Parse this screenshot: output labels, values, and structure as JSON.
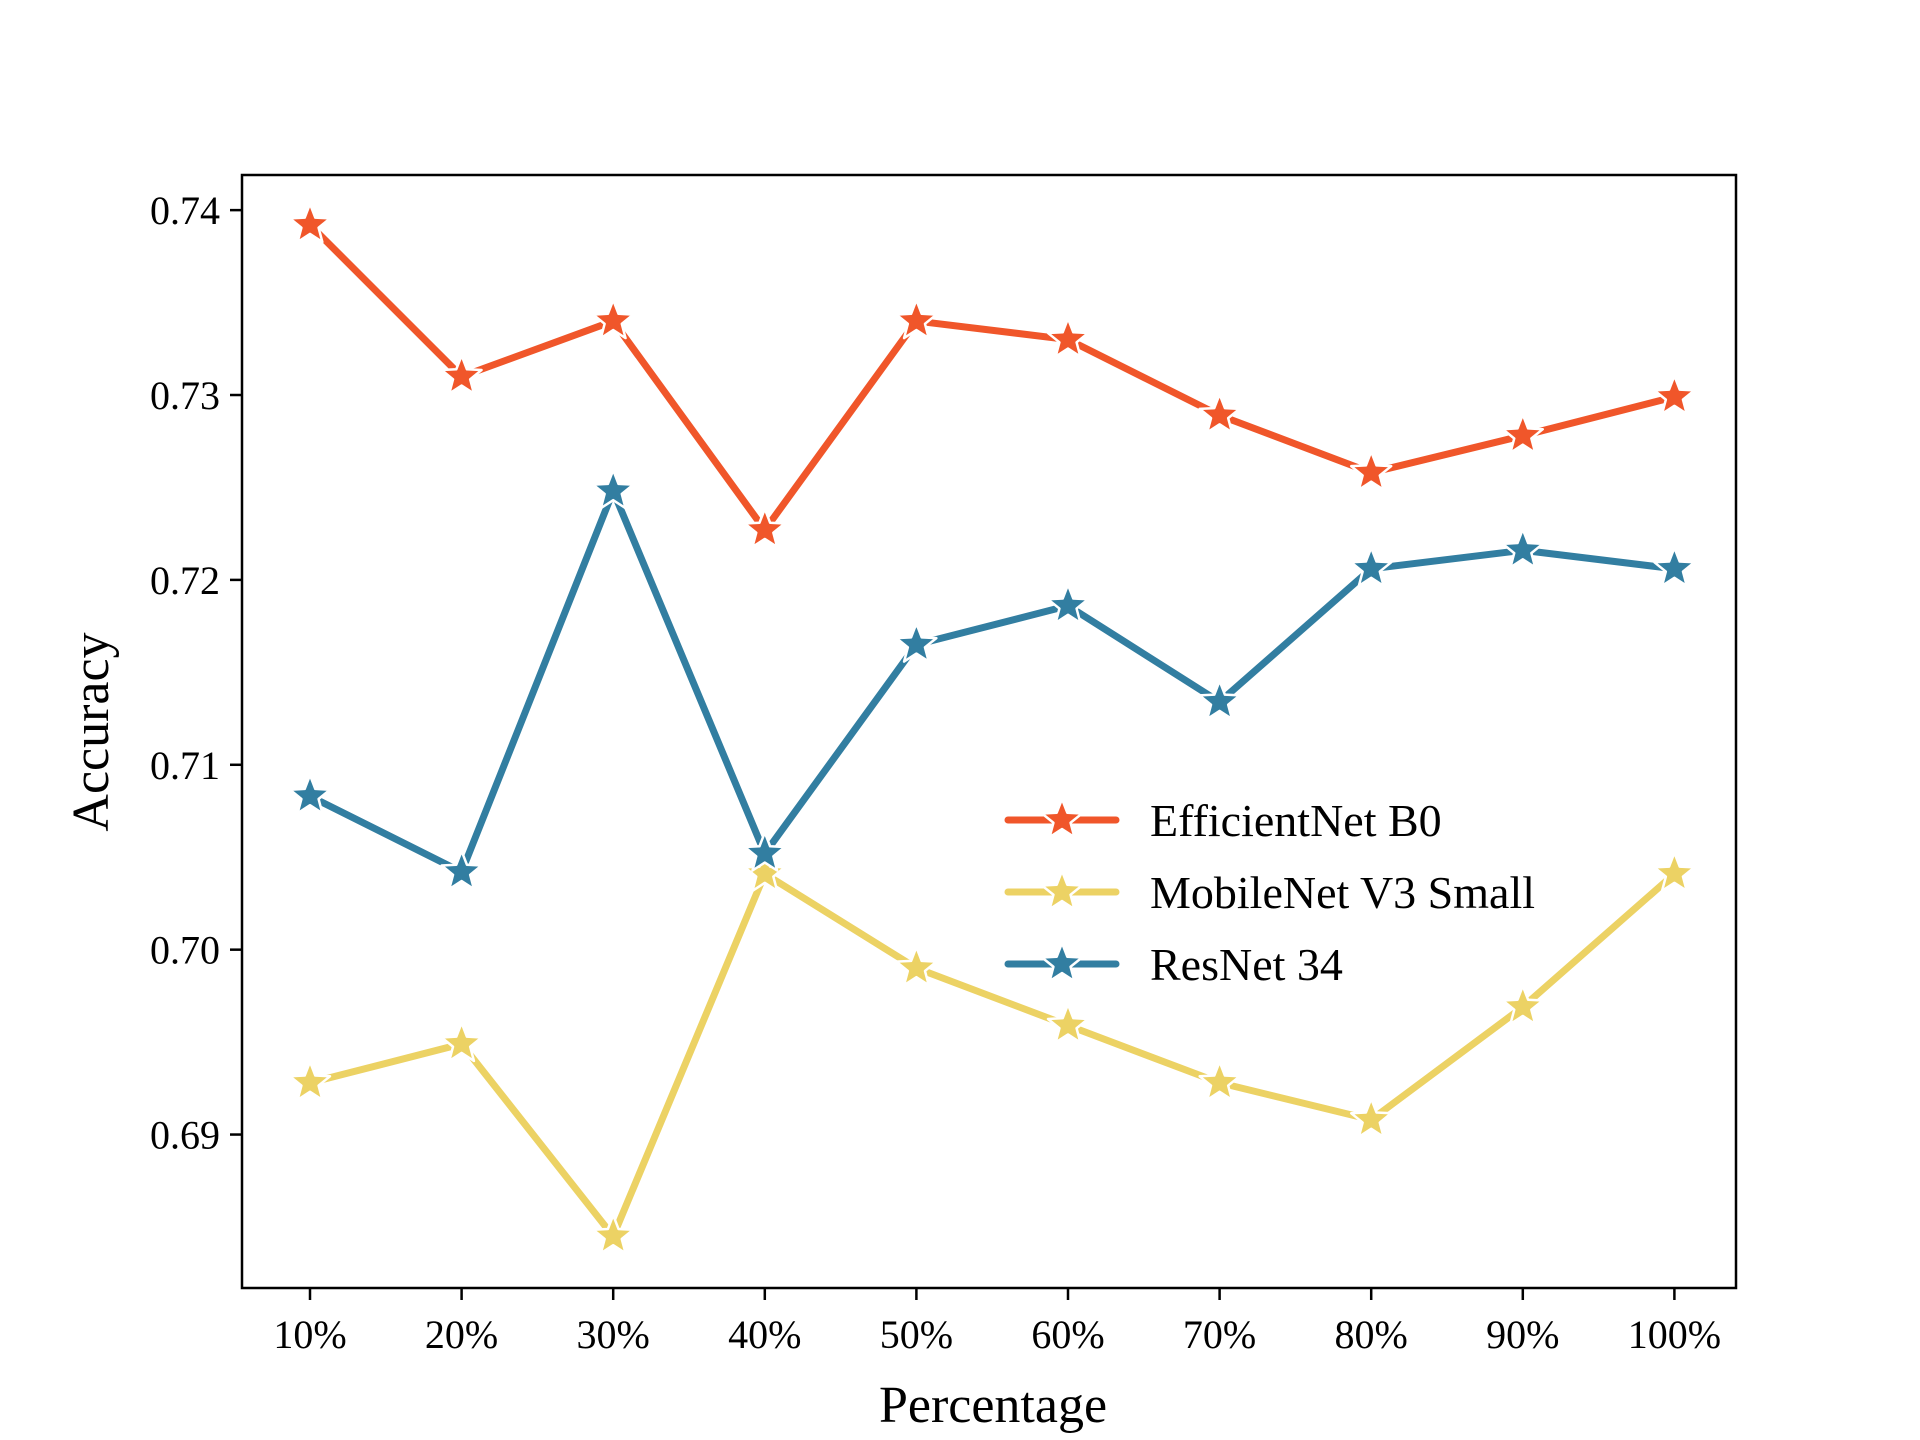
{
  "chart_data": {
    "type": "line",
    "xlabel": "Percentage",
    "ylabel": "Accuracy",
    "categories": [
      "10%",
      "20%",
      "30%",
      "40%",
      "50%",
      "60%",
      "70%",
      "80%",
      "90%",
      "100%"
    ],
    "yticks": [
      0.69,
      0.7,
      0.71,
      0.72,
      0.73,
      0.74
    ],
    "ytick_labels": [
      "0.69",
      "0.70",
      "0.71",
      "0.72",
      "0.73",
      "0.74"
    ],
    "ylim": [
      0.6817,
      0.7419
    ],
    "grid": false,
    "legend_position": "center-right",
    "marker": "star",
    "series": [
      {
        "name": "EfficientNet B0",
        "color": "#f0562a",
        "values": [
          0.7392,
          0.731,
          0.734,
          0.7227,
          0.734,
          0.733,
          0.7289,
          0.7258,
          0.7278,
          0.7299
        ]
      },
      {
        "name": "MobileNet V3 Small",
        "color": "#ecd264",
        "values": [
          0.6928,
          0.6949,
          0.6845,
          0.7041,
          0.699,
          0.6959,
          0.6928,
          0.6908,
          0.6969,
          0.7041
        ]
      },
      {
        "name": "ResNet 34",
        "color": "#327ea1",
        "values": [
          0.7083,
          0.7042,
          0.7248,
          0.7052,
          0.7165,
          0.7186,
          0.7134,
          0.7206,
          0.7216,
          0.7206
        ]
      }
    ]
  }
}
